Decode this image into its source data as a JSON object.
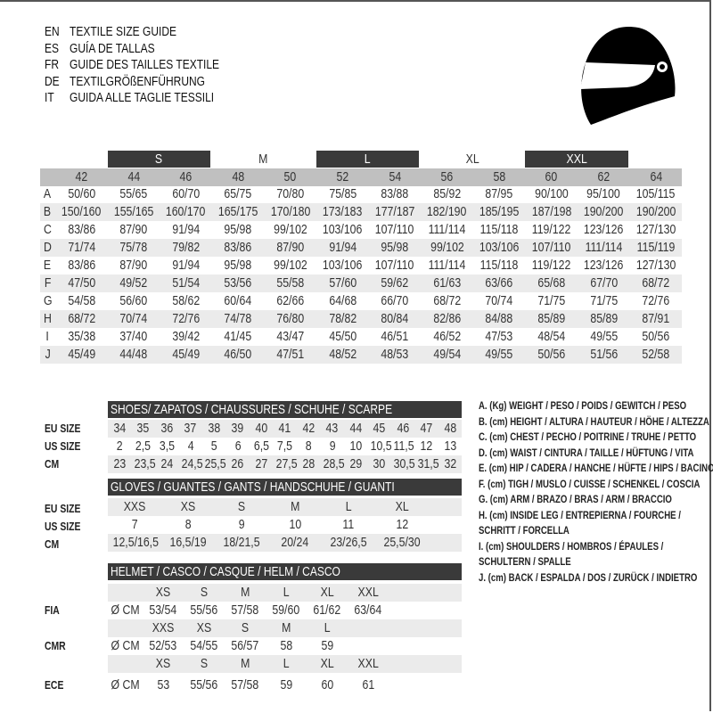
{
  "titles": [
    {
      "code": "EN",
      "text": "TEXTILE SIZE GUIDE"
    },
    {
      "code": "ES",
      "text": "GUÍA DE TALLAS"
    },
    {
      "code": "FR",
      "text": "GUIDE DES TAILLES TEXTILE"
    },
    {
      "code": "DE",
      "text": "TEXTILGRÖßENFÜHRUNG"
    },
    {
      "code": "IT",
      "text": "GUIDA ALLE TAGLIE TESSILI"
    }
  ],
  "icon": "motorcycle-helmet-icon",
  "colors": {
    "dark_bar": "#3a3a3a",
    "header_gray": "#c0c0c0",
    "row_shade": "#ebebeb"
  },
  "textile": {
    "size_groups": [
      {
        "label": "S",
        "dark": true
      },
      {
        "label": "M",
        "dark": false
      },
      {
        "label": "L",
        "dark": true
      },
      {
        "label": "XL",
        "dark": false
      },
      {
        "label": "XXL",
        "dark": true
      }
    ],
    "sizes": [
      "42",
      "44",
      "46",
      "48",
      "50",
      "52",
      "54",
      "56",
      "58",
      "60",
      "62",
      "64"
    ],
    "rows": [
      {
        "key": "A",
        "values": [
          "50/60",
          "55/65",
          "60/70",
          "65/75",
          "70/80",
          "75/85",
          "83/88",
          "85/92",
          "87/95",
          "90/100",
          "95/100",
          "105/115"
        ]
      },
      {
        "key": "B",
        "values": [
          "150/160",
          "155/165",
          "160/170",
          "165/175",
          "170/180",
          "173/183",
          "177/187",
          "182/190",
          "185/195",
          "187/198",
          "190/200",
          "190/200"
        ]
      },
      {
        "key": "C",
        "values": [
          "83/86",
          "87/90",
          "91/94",
          "95/98",
          "99/102",
          "103/106",
          "107/110",
          "111/114",
          "115/118",
          "119/122",
          "123/126",
          "127/130"
        ]
      },
      {
        "key": "D",
        "values": [
          "71/74",
          "75/78",
          "79/82",
          "83/86",
          "87/90",
          "91/94",
          "95/98",
          "99/102",
          "103/106",
          "107/110",
          "111/114",
          "115/119"
        ]
      },
      {
        "key": "E",
        "values": [
          "83/86",
          "87/90",
          "91/94",
          "95/98",
          "99/102",
          "103/106",
          "107/110",
          "111/114",
          "115/118",
          "119/122",
          "123/126",
          "127/130"
        ]
      },
      {
        "key": "F",
        "values": [
          "47/50",
          "49/52",
          "51/54",
          "53/56",
          "55/58",
          "57/60",
          "59/62",
          "61/63",
          "63/66",
          "65/68",
          "67/70",
          "68/72"
        ]
      },
      {
        "key": "G",
        "values": [
          "54/58",
          "56/60",
          "58/62",
          "60/64",
          "62/66",
          "64/68",
          "66/70",
          "68/72",
          "70/74",
          "71/75",
          "71/75",
          "72/76"
        ]
      },
      {
        "key": "H",
        "values": [
          "68/72",
          "70/74",
          "72/76",
          "74/78",
          "76/80",
          "78/82",
          "80/84",
          "82/86",
          "84/88",
          "85/89",
          "85/89",
          "87/91"
        ]
      },
      {
        "key": "I",
        "values": [
          "35/38",
          "37/40",
          "39/42",
          "41/45",
          "43/47",
          "45/50",
          "46/51",
          "46/52",
          "47/53",
          "48/54",
          "49/55",
          "50/56"
        ]
      },
      {
        "key": "J",
        "values": [
          "45/49",
          "44/48",
          "45/49",
          "46/50",
          "47/51",
          "48/52",
          "48/53",
          "49/54",
          "49/55",
          "50/56",
          "51/56",
          "52/58"
        ]
      }
    ]
  },
  "shoes": {
    "title": "SHOES/ ZAPATOS / CHAUSSURES / SCHUHE / SCARPE",
    "rows": [
      {
        "label": "EU SIZE",
        "values": [
          "34",
          "35",
          "36",
          "37",
          "38",
          "39",
          "40",
          "41",
          "42",
          "43",
          "44",
          "45",
          "46",
          "47",
          "48"
        ]
      },
      {
        "label": "US SIZE",
        "values": [
          "2",
          "2,5",
          "3,5",
          "4",
          "5",
          "6",
          "6,5",
          "7,5",
          "8",
          "9",
          "10",
          "10,5",
          "11,5",
          "12",
          "13"
        ]
      },
      {
        "label": "CM",
        "values": [
          "23",
          "23,5",
          "24",
          "24,5",
          "25,5",
          "26",
          "27",
          "27,5",
          "28",
          "28,5",
          "29",
          "30",
          "30,5",
          "31,5",
          "32"
        ]
      }
    ]
  },
  "gloves": {
    "title": "GLOVES / GUANTES / GANTS / HANDSCHUHE / GUANTI",
    "rows": [
      {
        "label": "EU SIZE",
        "values": [
          "XXS",
          "XS",
          "S",
          "M",
          "L",
          "XL"
        ]
      },
      {
        "label": "US SIZE",
        "values": [
          "7",
          "8",
          "9",
          "10",
          "11",
          "12"
        ]
      },
      {
        "label": "CM",
        "values": [
          "12,5/16,5",
          "16,5/19",
          "18/21,5",
          "20/24",
          "23/26,5",
          "25,5/30"
        ]
      }
    ]
  },
  "helmet": {
    "title": "HELMET / CASCO / CASQUE / HELM / CASCO",
    "unit": "Ø CM",
    "standards": [
      {
        "label": "FIA",
        "sizes": [
          "XS",
          "S",
          "M",
          "L",
          "XL",
          "XXL"
        ],
        "values": [
          "53/54",
          "55/56",
          "57/58",
          "59/60",
          "61/62",
          "63/64"
        ]
      },
      {
        "label": "CMR",
        "sizes": [
          "XXS",
          "XS",
          "S",
          "M",
          "L"
        ],
        "values": [
          "52/53",
          "54/55",
          "56/57",
          "58",
          "59"
        ]
      },
      {
        "label": "ECE",
        "sizes": [
          "XS",
          "S",
          "M",
          "L",
          "XL",
          "XXL"
        ],
        "values": [
          "53",
          "55/56",
          "57/58",
          "59",
          "60",
          "61"
        ]
      }
    ]
  },
  "legend": [
    "A. (Kg) WEIGHT / PESO / POIDS / GEWITCH / PESO",
    "B. (cm) HEIGHT / ALTURA / HAUTEUR / HÖHE / ALTEZZA",
    "C. (cm) CHEST / PECHO / POITRINE / TRUHE / PETTO",
    "D. (cm) WAIST / CINTURA / TAILLE / HÜFTUNG / VITA",
    "E. (cm) HIP / CADERA / HANCHE / HÜFTE / HIPS /  BACINO",
    "F.  (cm) TIGH / MUSLO / CUISSE / SCHENKEL / COSCIA",
    "G. (cm) ARM  / BRAZO / BRAS / ARM / BRACCIO",
    "H. (cm) INSIDE LEG / ENTREPIERNA / FOURCHE /",
    "SCHRITT / FORCELLA",
    "I.  (cm) SHOULDERS / HOMBROS / ÉPAULES /",
    "SCHULTERN / SPALLE",
    "J. (cm) BACK / ESPALDA / DOS / ZURÜCK / INDIETRO"
  ]
}
